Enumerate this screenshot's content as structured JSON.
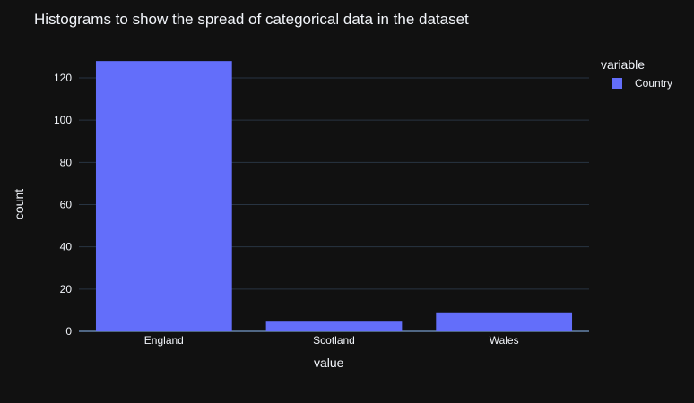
{
  "title": "Histograms to show the spread of categorical data in the dataset",
  "legend": {
    "title": "variable",
    "entries": [
      "Country"
    ]
  },
  "colors": {
    "background": "#111111",
    "bar": "#636efa",
    "grid": "#283442",
    "text": "#f2f5fa"
  },
  "chart_data": {
    "type": "bar",
    "title": "Histograms to show the spread of categorical data in the dataset",
    "xlabel": "value",
    "ylabel": "count",
    "categories": [
      "England",
      "Scotland",
      "Wales"
    ],
    "series": [
      {
        "name": "Country",
        "values": [
          128,
          5,
          9
        ]
      }
    ],
    "ylim": [
      0,
      134
    ],
    "yticks": [
      0,
      20,
      40,
      60,
      80,
      100,
      120
    ],
    "grid": true,
    "legend_position": "top-right"
  }
}
